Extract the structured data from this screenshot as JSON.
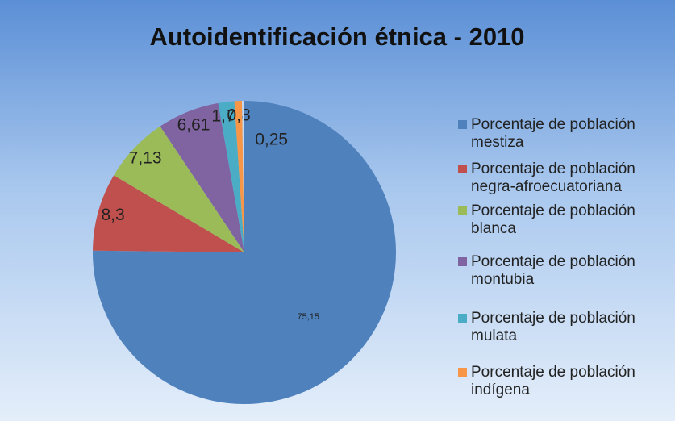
{
  "chart_data": {
    "type": "pie",
    "title": "Autoidentificación étnica - 2010",
    "categories": [
      "Porcentaje de población mestiza",
      "Porcentaje de población negra-afroecuatoriana",
      "Porcentaje de población blanca",
      "Porcentaje de población montubia",
      "Porcentaje de población mulata",
      "Porcentaje de población indígena",
      null
    ],
    "values": [
      75.15,
      8.3,
      7.13,
      6.61,
      1.71,
      0.8,
      0.25
    ],
    "value_labels": [
      "75,15",
      "8,3",
      "7,13",
      "6,61",
      "1,71",
      "0,8",
      "0,25"
    ],
    "colors": [
      "#4f81bd",
      "#c0504d",
      "#9bbb59",
      "#8064a2",
      "#4bacc6",
      "#f79646",
      "#c6d9f1"
    ],
    "legend": "right"
  }
}
